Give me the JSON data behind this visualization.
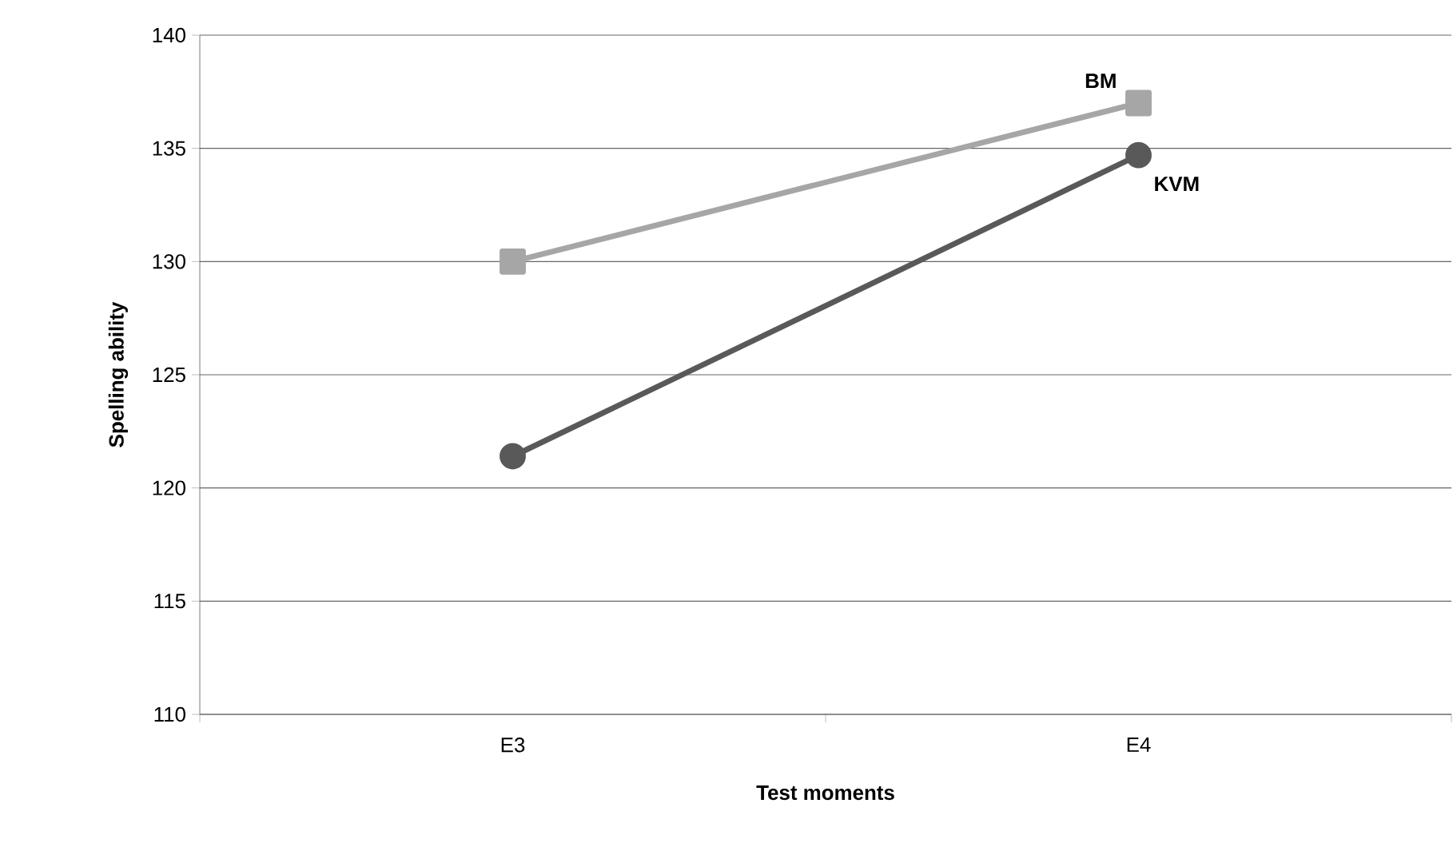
{
  "chart_data": {
    "type": "line",
    "xlabel": "Test moments",
    "ylabel": "Spelling ability",
    "categories": [
      "E3",
      "E4"
    ],
    "series": [
      {
        "name": "BM",
        "color": "#a6a6a6",
        "marker": "square",
        "values": [
          130,
          137
        ]
      },
      {
        "name": "KVM",
        "color": "#595959",
        "marker": "circle",
        "values": [
          121.4,
          134.7
        ]
      }
    ],
    "ylim": [
      110,
      140
    ],
    "yticks": [
      110,
      115,
      120,
      125,
      130,
      135,
      140
    ],
    "grid": "y",
    "legend": false
  }
}
